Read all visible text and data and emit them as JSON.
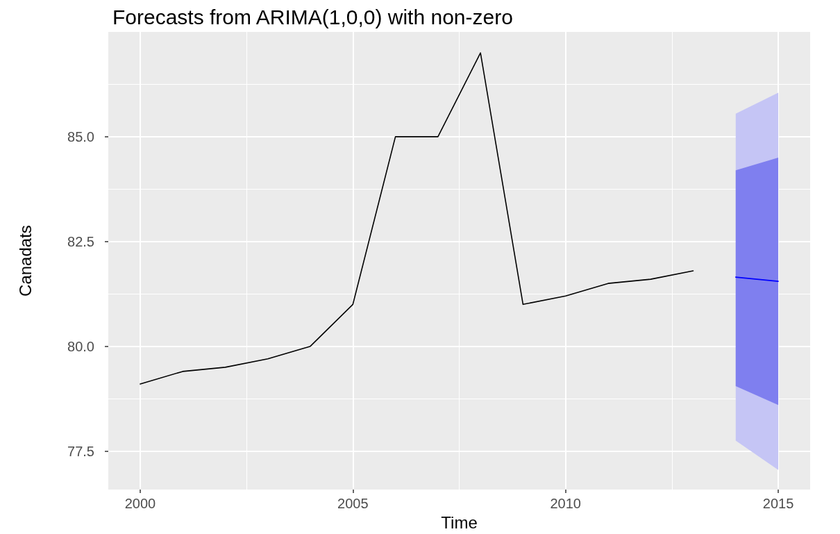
{
  "chart_data": {
    "type": "line",
    "title": "Forecasts from ARIMA(1,0,0) with non-zero",
    "xlabel": "Time",
    "ylabel": "Canadats",
    "xlim": [
      1999.25,
      2015.75
    ],
    "xticks": [
      2000,
      2005,
      2010,
      2015
    ],
    "ylim": [
      76.58,
      87.5
    ],
    "yticks": [
      77.5,
      {
        "value": 80,
        "label": "80.0"
      },
      82.5,
      {
        "value": 85,
        "label": "85.0"
      }
    ],
    "grid": true,
    "series": [
      {
        "color": "#c5c5f5",
        "x": [
          2014,
          2015
        ],
        "values": [
          null,
          null
        ],
        "lower": [
          77.75,
          77.05
        ],
        "upper": [
          85.55,
          86.05
        ]
      },
      {
        "color": "#7f7fef",
        "x": [
          2014,
          2015
        ],
        "values": [
          null,
          null
        ],
        "lower": [
          79.05,
          78.6
        ],
        "upper": [
          84.2,
          84.5
        ]
      },
      {
        "color": "#000000",
        "x": [
          2000,
          2001,
          2002,
          2003,
          2004,
          2005,
          2006,
          2007,
          2008,
          2009,
          2010,
          2011,
          2012,
          2013
        ],
        "values": [
          79.1,
          79.4,
          79.5,
          79.7,
          80.0,
          81.0,
          85.0,
          85.0,
          87.0,
          81.0,
          81.2,
          81.5,
          81.6,
          81.8
        ]
      },
      {
        "color": "#0000ff",
        "x": [
          2014,
          2015
        ],
        "values": [
          81.65,
          81.55
        ]
      }
    ]
  }
}
